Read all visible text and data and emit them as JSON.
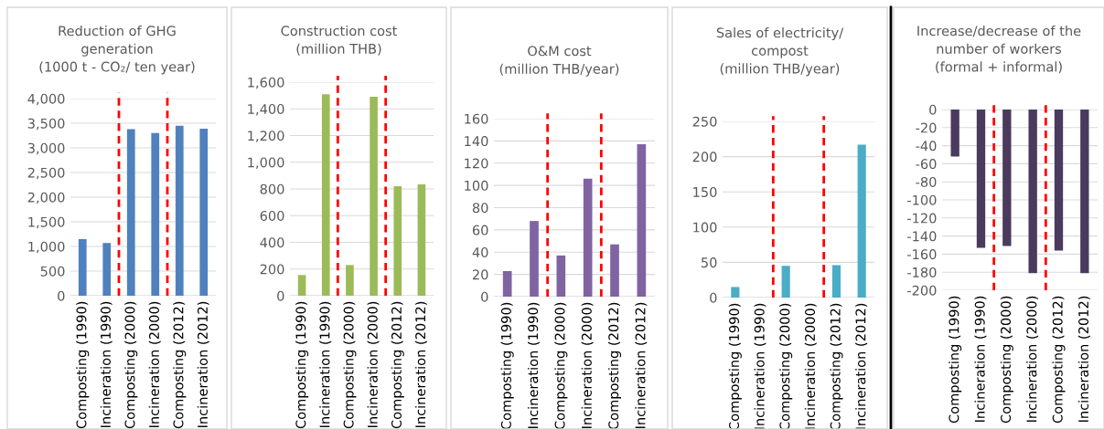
{
  "chart_data": [
    {
      "type": "bar",
      "title": "Reduction of GHG\ngeneration\n(1000 t - CO₂/ ten year)",
      "categories": [
        "Composting (1990)",
        "Incineration (1990)",
        "Composting (2000)",
        "Incineration (2000)",
        "Composting (2012)",
        "Incineration (2012)"
      ],
      "values": [
        1150,
        1070,
        3380,
        3300,
        3450,
        3390
      ],
      "color": "#4f81bd",
      "ylim": [
        0,
        4000
      ],
      "yticks": [
        {
          "value": 0,
          "label": "0"
        },
        {
          "value": 500,
          "label": "500"
        },
        {
          "value": 1000,
          "label": "1,000"
        },
        {
          "value": 1500,
          "label": "1,500"
        },
        {
          "value": 2000,
          "label": "2,000"
        },
        {
          "value": 2500,
          "label": "2,500"
        },
        {
          "value": 3000,
          "label": "3,000"
        },
        {
          "value": 3500,
          "label": "3,500"
        },
        {
          "value": 4000,
          "label": "4,000"
        }
      ],
      "grid": "y"
    },
    {
      "type": "bar",
      "title": "Construction cost\n(million THB)",
      "categories": [
        "Composting (1990)",
        "Incineration (1990)",
        "Composting (2000)",
        "Incineration (2000)",
        "Composting (2012)",
        "Incineration (2012)"
      ],
      "values": [
        155,
        1510,
        230,
        1490,
        820,
        835
      ],
      "color": "#9bbb59",
      "ylim": [
        0,
        1600
      ],
      "yticks": [
        {
          "value": 0,
          "label": "0"
        },
        {
          "value": 200,
          "label": "200"
        },
        {
          "value": 400,
          "label": "400"
        },
        {
          "value": 600,
          "label": "600"
        },
        {
          "value": 800,
          "label": "800"
        },
        {
          "value": 1000,
          "label": "1,000"
        },
        {
          "value": 1200,
          "label": "1,200"
        },
        {
          "value": 1400,
          "label": "1,400"
        },
        {
          "value": 1600,
          "label": "1,600"
        }
      ],
      "grid": "y"
    },
    {
      "type": "bar",
      "title": "O&M cost\n(million THB/year)",
      "categories": [
        "Composting (1990)",
        "Incineration (1990)",
        "Composting (2000)",
        "Incineration (2000)",
        "Composting (2012)",
        "Incineration (2012)"
      ],
      "values": [
        23,
        68,
        37,
        106,
        47,
        137
      ],
      "color": "#8064a2",
      "ylim": [
        0,
        160
      ],
      "yticks": [
        0,
        20,
        40,
        60,
        80,
        100,
        120,
        140,
        160
      ],
      "grid": "y"
    },
    {
      "type": "bar",
      "title": "Sales of electricity/\ncompost\n(million THB/year)",
      "categories": [
        "Composting (1990)",
        "Incineration (1990)",
        "Composting (2000)",
        "Incineration (2000)",
        "Composting (2012)",
        "Incineration (2012)"
      ],
      "values": [
        15,
        null,
        45,
        null,
        46,
        217
      ],
      "color": "#4bacc6",
      "ylim": [
        0,
        250
      ],
      "yticks": [
        0,
        50,
        100,
        150,
        200,
        250
      ],
      "grid": "y"
    },
    {
      "type": "bar",
      "title": "Increase/decrease of the\nnumber of workers\n(formal + informal)",
      "categories": [
        "Composting (1990)",
        "Incineration (1990)",
        "Composting (2000)",
        "Incineration (2000)",
        "Composting (2012)",
        "Incineration (2012)"
      ],
      "values": [
        -52,
        -153,
        -151,
        -181,
        -156,
        -181
      ],
      "color": "#4a3a5e",
      "ylim": [
        -200,
        0
      ],
      "yticks": [
        0,
        -20,
        -40,
        -60,
        -80,
        -100,
        -120,
        -140,
        -160,
        -180,
        -200
      ],
      "grid": "y"
    }
  ]
}
